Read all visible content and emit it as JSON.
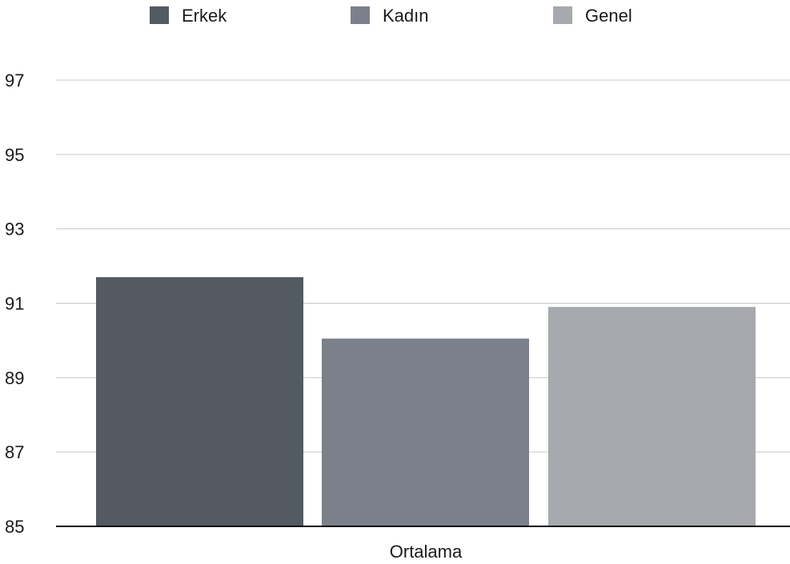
{
  "chart_data": {
    "type": "bar",
    "categories": [
      "Ortalama"
    ],
    "series": [
      {
        "name": "Erkek",
        "values": [
          91.7
        ],
        "color": "#535a62"
      },
      {
        "name": "Kadın",
        "values": [
          90.05
        ],
        "color": "#7b818b"
      },
      {
        "name": "Genel",
        "values": [
          90.9
        ],
        "color": "#a6a9ae"
      }
    ],
    "ylim": [
      85,
      97
    ],
    "yticks": [
      97,
      95,
      93,
      91,
      89,
      87,
      85
    ],
    "grid": true,
    "legend_position": "top",
    "title": "",
    "xlabel": "",
    "ylabel": ""
  }
}
